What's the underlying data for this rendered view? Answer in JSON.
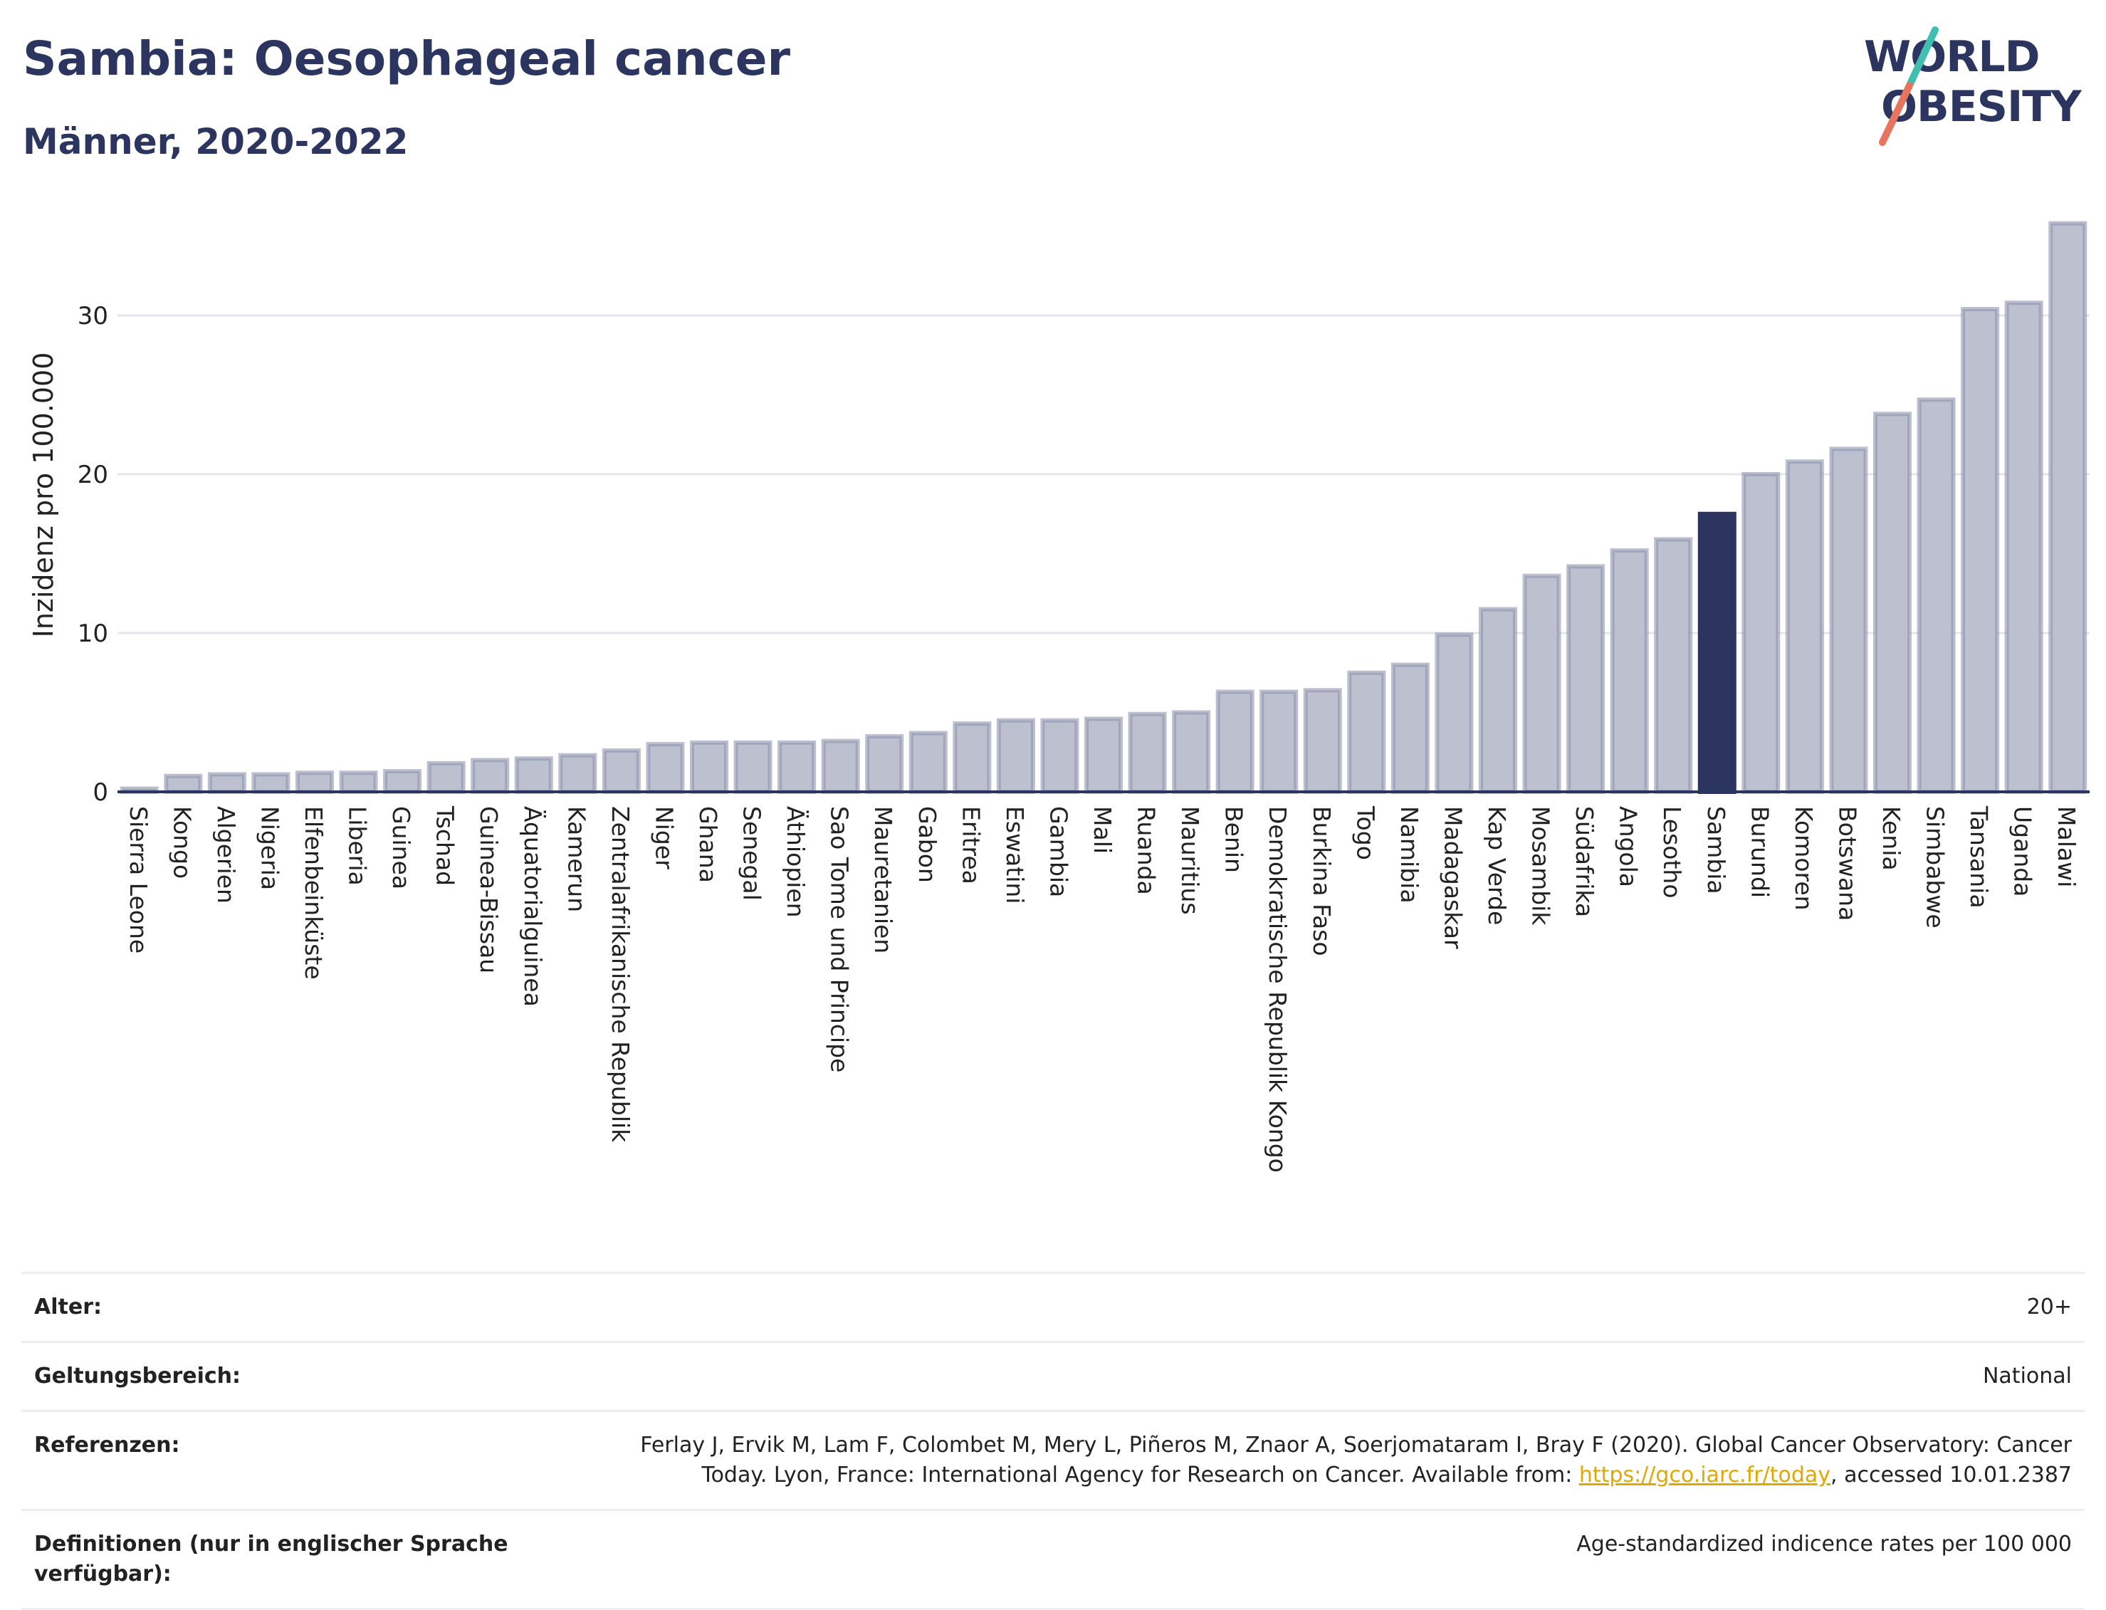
{
  "header": {
    "title": "Sambia: Oesophageal cancer",
    "subtitle": "Männer, 2020-2022"
  },
  "logo": {
    "line1": "WORLD",
    "line2": "OBESITY",
    "accent_teal": "#3ebfb0",
    "accent_red": "#e8735f"
  },
  "colors": {
    "bar": "#bcc0cf",
    "bar_edge": "#8e94ad",
    "highlight": "#2b3560",
    "grid": "#e4e6ec",
    "axis": "#2b3560"
  },
  "chart_data": {
    "type": "bar",
    "ylabel": "Inzidenz pro 100.000",
    "ylim": [
      0,
      37
    ],
    "yticks": [
      0,
      10,
      20,
      30
    ],
    "grid": true,
    "highlight": "Sambia",
    "categories": [
      "Sierra Leone",
      "Kongo",
      "Algerien",
      "Nigeria",
      "Elfenbeinküste",
      "Liberia",
      "Guinea",
      "Tschad",
      "Guinea-Bissau",
      "Äquatorialguinea",
      "Kamerun",
      "Zentralafrikanische Republik",
      "Niger",
      "Ghana",
      "Senegal",
      "Äthiopien",
      "Sao Tome und Principe",
      "Mauretanien",
      "Gabon",
      "Eritrea",
      "Eswatini",
      "Gambia",
      "Mali",
      "Ruanda",
      "Mauritius",
      "Benin",
      "Demokratische Republik Kongo",
      "Burkina Faso",
      "Togo",
      "Namibia",
      "Madagaskar",
      "Kap Verde",
      "Mosambik",
      "Südafrika",
      "Angola",
      "Lesotho",
      "Sambia",
      "Burundi",
      "Komoren",
      "Botswana",
      "Kenia",
      "Simbabwe",
      "Tansania",
      "Uganda",
      "Malawi"
    ],
    "values": [
      0.2,
      1.0,
      1.1,
      1.1,
      1.2,
      1.2,
      1.3,
      1.8,
      2.0,
      2.1,
      2.3,
      2.6,
      3.0,
      3.1,
      3.1,
      3.1,
      3.2,
      3.5,
      3.7,
      4.3,
      4.5,
      4.5,
      4.6,
      4.9,
      5.0,
      6.3,
      6.3,
      6.4,
      7.5,
      8.0,
      9.9,
      11.5,
      13.6,
      14.2,
      15.2,
      15.9,
      17.5,
      20.0,
      20.8,
      21.6,
      23.8,
      24.7,
      30.4,
      30.8,
      35.8
    ]
  },
  "info": {
    "rows": [
      {
        "label": "Alter:",
        "value": "20+"
      },
      {
        "label": "Geltungsbereich:",
        "value": "National"
      }
    ],
    "ref_label": "Referenzen:",
    "ref_line1": "Ferlay J, Ervik M, Lam F, Colombet M, Mery L, Piñeros M, Znaor A, Soerjomataram I, Bray F (2020). Global Cancer Observatory: Cancer",
    "ref_line2_pre": "Today. Lyon, France: International Agency for Research on Cancer. Available from: ",
    "ref_link": "https://gco.iarc.fr/today",
    "ref_line2_post": ", accessed 10.01.2387",
    "def_label": "Definitionen (nur in englischer Sprache verfügbar):",
    "def_value": "Age-standardized indicence rates per 100 000"
  }
}
